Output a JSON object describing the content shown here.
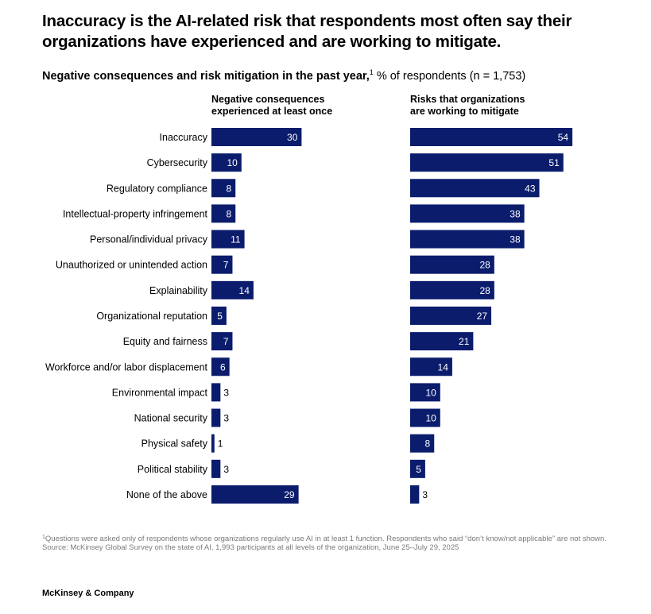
{
  "headline": "Inaccuracy is the AI-related risk that respondents most often say their organizations have experienced and are working to mitigate.",
  "subtitle": {
    "bold": "Negative consequences and risk mitigation in the past year,",
    "footnote_mark": "1",
    "rest": " % of respondents (n = 1,753)"
  },
  "colors": {
    "bar": "#0b1c6d",
    "label_inside": "#ffffff",
    "label_outside": "#000000"
  },
  "chart_data": {
    "type": "bar",
    "orientation": "horizontal",
    "categories": [
      "Inaccuracy",
      "Cybersecurity",
      "Regulatory compliance",
      "Intellectual-property infringement",
      "Personal/individual privacy",
      "Unauthorized or unintended action",
      "Explainability",
      "Organizational reputation",
      "Equity and fairness",
      "Workforce and/or labor displacement",
      "Environmental impact",
      "National security",
      "Physical safety",
      "Political stability",
      "None of the above"
    ],
    "series": [
      {
        "name": "Negative consequences experienced at least once",
        "header_lines": [
          "Negative consequences",
          "experienced at least once"
        ],
        "values": [
          30,
          10,
          8,
          8,
          11,
          7,
          14,
          5,
          7,
          6,
          3,
          3,
          1,
          3,
          29
        ]
      },
      {
        "name": "Risks that organizations are working to mitigate",
        "header_lines": [
          "Risks that organizations",
          "are working to mitigate"
        ],
        "values": [
          54,
          51,
          43,
          38,
          38,
          28,
          28,
          27,
          21,
          14,
          10,
          10,
          8,
          5,
          3
        ]
      }
    ],
    "unit": "% of respondents",
    "grid": false
  },
  "footnote": {
    "mark": "1",
    "text": "Questions were asked only of respondents whose organizations regularly use AI in at least 1 function. Respondents who said “don’t know/not applicable” are not shown.",
    "source": "Source: McKinsey Global Survey on the state of AI, 1,993 participants at all levels of the organization, June 25–July 29, 2025"
  },
  "brand": "McKinsey & Company"
}
